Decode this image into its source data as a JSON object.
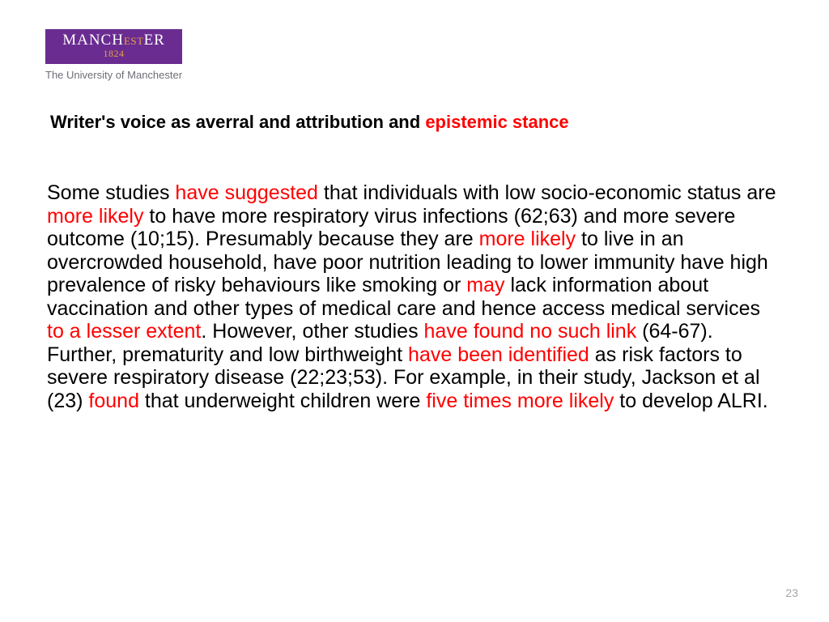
{
  "logo": {
    "name_left": "MANCH",
    "name_mid": "EST",
    "name_right": "ER",
    "year": "1824",
    "tagline": "The University of Manchester",
    "banner_bg": "#6a2c91",
    "banner_text_color": "#ffffff",
    "accent_color": "#e8a33d"
  },
  "title": {
    "prefix": "Writer's voice as averral and attribution and ",
    "highlight": "epistemic stance",
    "fontsize": 22,
    "highlight_color": "#ff0000"
  },
  "body": {
    "fontsize": 25,
    "line_height": 1.14,
    "highlight_color": "#ff0000",
    "segments": [
      {
        "t": "Some studies ",
        "hl": false
      },
      {
        "t": "have suggested",
        "hl": true
      },
      {
        "t": " that individuals with low socio-economic status are ",
        "hl": false
      },
      {
        "t": "more likely",
        "hl": true
      },
      {
        "t": " to have more respiratory virus infections (62;63) and more severe outcome (10;15). Presumably because they are ",
        "hl": false
      },
      {
        "t": "more likely",
        "hl": true
      },
      {
        "t": " to live in an overcrowded household, have poor nutrition leading to lower immunity have high prevalence of risky behaviours like smoking or ",
        "hl": false
      },
      {
        "t": "may",
        "hl": true
      },
      {
        "t": " lack information about vaccination and other types of medical care and hence access medical services ",
        "hl": false
      },
      {
        "t": "to a lesser extent",
        "hl": true
      },
      {
        "t": ". However, other studies ",
        "hl": false
      },
      {
        "t": "have found no such link",
        "hl": true
      },
      {
        "t": " (64-67). Further, prematurity and low birthweight ",
        "hl": false
      },
      {
        "t": "have been identified",
        "hl": true
      },
      {
        "t": " as risk factors to severe respiratory disease (22;23;53). For example, in their study, Jackson et al (23) ",
        "hl": false
      },
      {
        "t": "found",
        "hl": true
      },
      {
        "t": " that underweight children were ",
        "hl": false
      },
      {
        "t": "five times more likely",
        "hl": true
      },
      {
        "t": " to develop ALRI.",
        "hl": false
      }
    ]
  },
  "page_number": "23",
  "page_number_color": "#a6a6a6",
  "background_color": "#ffffff"
}
